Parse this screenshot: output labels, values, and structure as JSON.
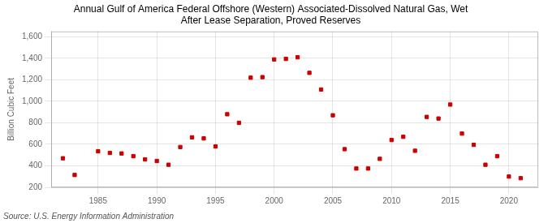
{
  "chart_data": {
    "type": "scatter",
    "title": "Annual Gulf of America Federal Offshore (Western) Associated-Dissolved Natural Gas, Wet\nAfter Lease Separation, Proved Reserves",
    "ylabel": "Billion Cubic Feet",
    "annotation": "Source: U.S. Energy Information Administration",
    "x": [
      1982,
      1983,
      1985,
      1986,
      1987,
      1988,
      1989,
      1990,
      1991,
      1992,
      1993,
      1994,
      1995,
      1996,
      1997,
      1998,
      1999,
      2000,
      2001,
      2002,
      2003,
      2004,
      2005,
      2006,
      2007,
      2008,
      2009,
      2010,
      2011,
      2012,
      2013,
      2014,
      2015,
      2016,
      2017,
      2018,
      2019,
      2020,
      2021
    ],
    "values": [
      470,
      315,
      535,
      520,
      515,
      490,
      460,
      445,
      410,
      575,
      665,
      655,
      580,
      880,
      800,
      1220,
      1225,
      1390,
      1395,
      1410,
      1265,
      1110,
      870,
      555,
      375,
      375,
      465,
      640,
      670,
      540,
      855,
      840,
      970,
      700,
      595,
      410,
      490,
      300,
      285
    ],
    "color": "#cc0000",
    "marker": "square",
    "xlim": [
      1981,
      2022.5
    ],
    "xticks": [
      1985,
      1990,
      1995,
      2000,
      2005,
      2010,
      2015,
      2020
    ],
    "ylim": [
      200,
      1650
    ],
    "yticks": [
      200,
      400,
      600,
      800,
      {
        "value": 1000,
        "label": "1,000"
      },
      {
        "value": 1200,
        "label": "1,200"
      },
      {
        "value": 1400,
        "label": "1,400"
      },
      {
        "value": 1600,
        "label": "1,600"
      }
    ],
    "grid": true
  }
}
